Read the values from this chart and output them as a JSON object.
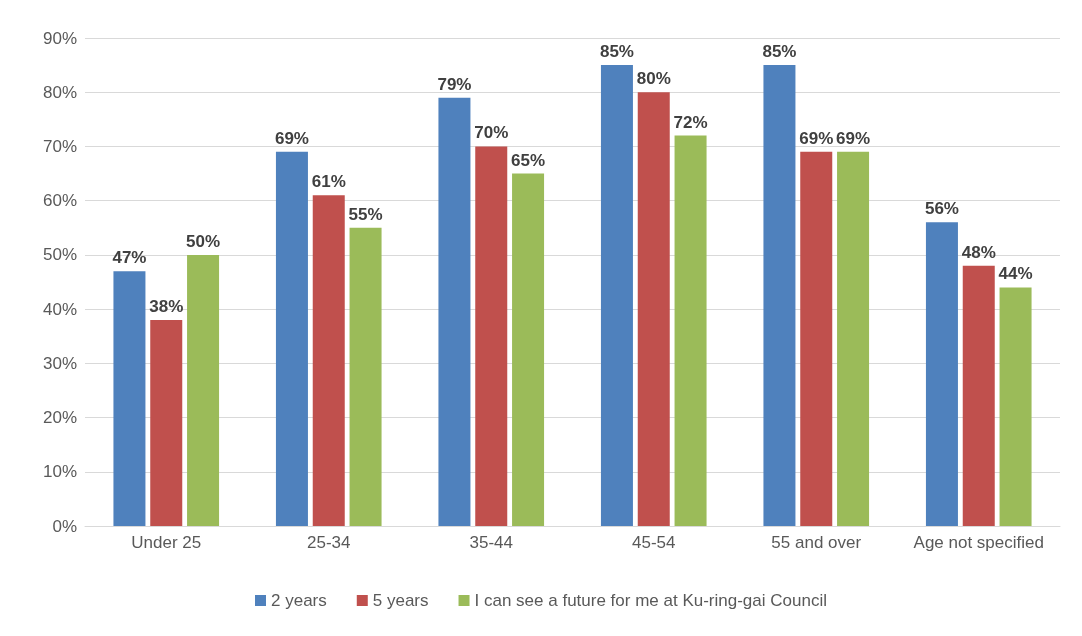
{
  "chart_data": {
    "type": "bar",
    "categories": [
      "Under 25",
      "25-34",
      "35-44",
      "45-54",
      "55 and over",
      "Age not specified"
    ],
    "series": [
      {
        "name": "2 years",
        "color": "#4f81bd",
        "values": [
          47,
          69,
          79,
          85,
          85,
          56
        ],
        "value_labels": [
          "47%",
          "69%",
          "79%",
          "85%",
          "85%",
          "56%"
        ]
      },
      {
        "name": "5 years",
        "color": "#c0504d",
        "values": [
          38,
          61,
          70,
          80,
          69,
          48
        ],
        "value_labels": [
          "38%",
          "61%",
          "70%",
          "80%",
          "69%",
          "48%"
        ]
      },
      {
        "name": "I can see a future for me at Ku-ring-gai Council",
        "color": "#9bbb59",
        "values": [
          50,
          55,
          65,
          72,
          69,
          44
        ],
        "value_labels": [
          "50%",
          "55%",
          "65%",
          "72%",
          "69%",
          "44%"
        ]
      }
    ],
    "ylim": [
      0,
      90
    ],
    "yticks": [
      {
        "value": 0,
        "label": "0%"
      },
      {
        "value": 10,
        "label": "10%"
      },
      {
        "value": 20,
        "label": "20%"
      },
      {
        "value": 30,
        "label": "30%"
      },
      {
        "value": 40,
        "label": "40%"
      },
      {
        "value": 50,
        "label": "50%"
      },
      {
        "value": 60,
        "label": "60%"
      },
      {
        "value": 70,
        "label": "70%"
      },
      {
        "value": 80,
        "label": "80%"
      },
      {
        "value": 90,
        "label": "90%"
      }
    ],
    "grid": "y",
    "legend": "bottom"
  }
}
